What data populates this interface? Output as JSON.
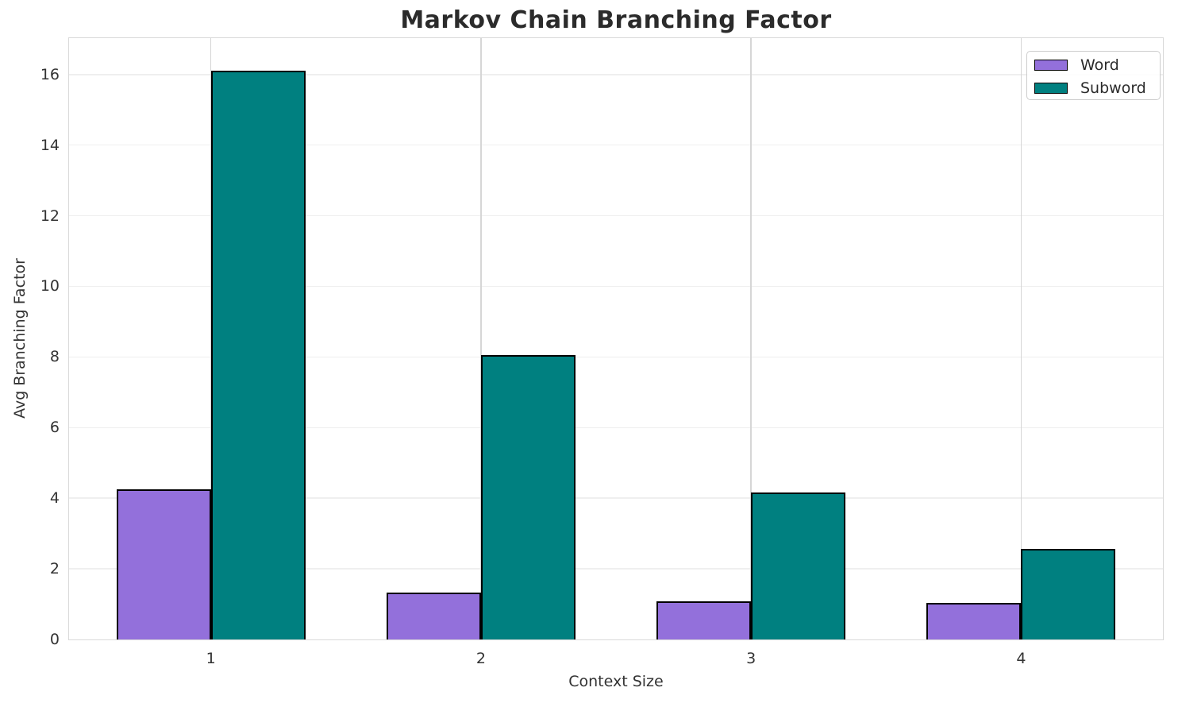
{
  "chart_data": {
    "type": "bar",
    "title": "Markov Chain Branching Factor",
    "xlabel": "Context Size",
    "ylabel": "Avg Branching Factor",
    "categories": [
      "1",
      "2",
      "3",
      "4"
    ],
    "x": [
      1,
      2,
      3,
      4
    ],
    "series": [
      {
        "name": "Word",
        "color": "#9370DB",
        "values": [
          4.25,
          1.33,
          1.09,
          1.04
        ]
      },
      {
        "name": "Subword",
        "color": "#008080",
        "values": [
          16.1,
          8.05,
          4.17,
          2.56
        ]
      }
    ],
    "bar_width": 0.35,
    "bar_edge_color": "#000000",
    "xlim": [
      0.475,
      4.525
    ],
    "ylim": [
      0,
      17.03
    ],
    "yticks": [
      0,
      2,
      4,
      6,
      8,
      10,
      12,
      14,
      16
    ],
    "grid": true,
    "legend_position": "upper right",
    "colors": {
      "grid_horizontal": "#efefef",
      "grid_vertical": "#d6d6d6",
      "spine": "#d9d9d9",
      "tick_text": "#333333",
      "title_text": "#2b2b2b"
    }
  }
}
